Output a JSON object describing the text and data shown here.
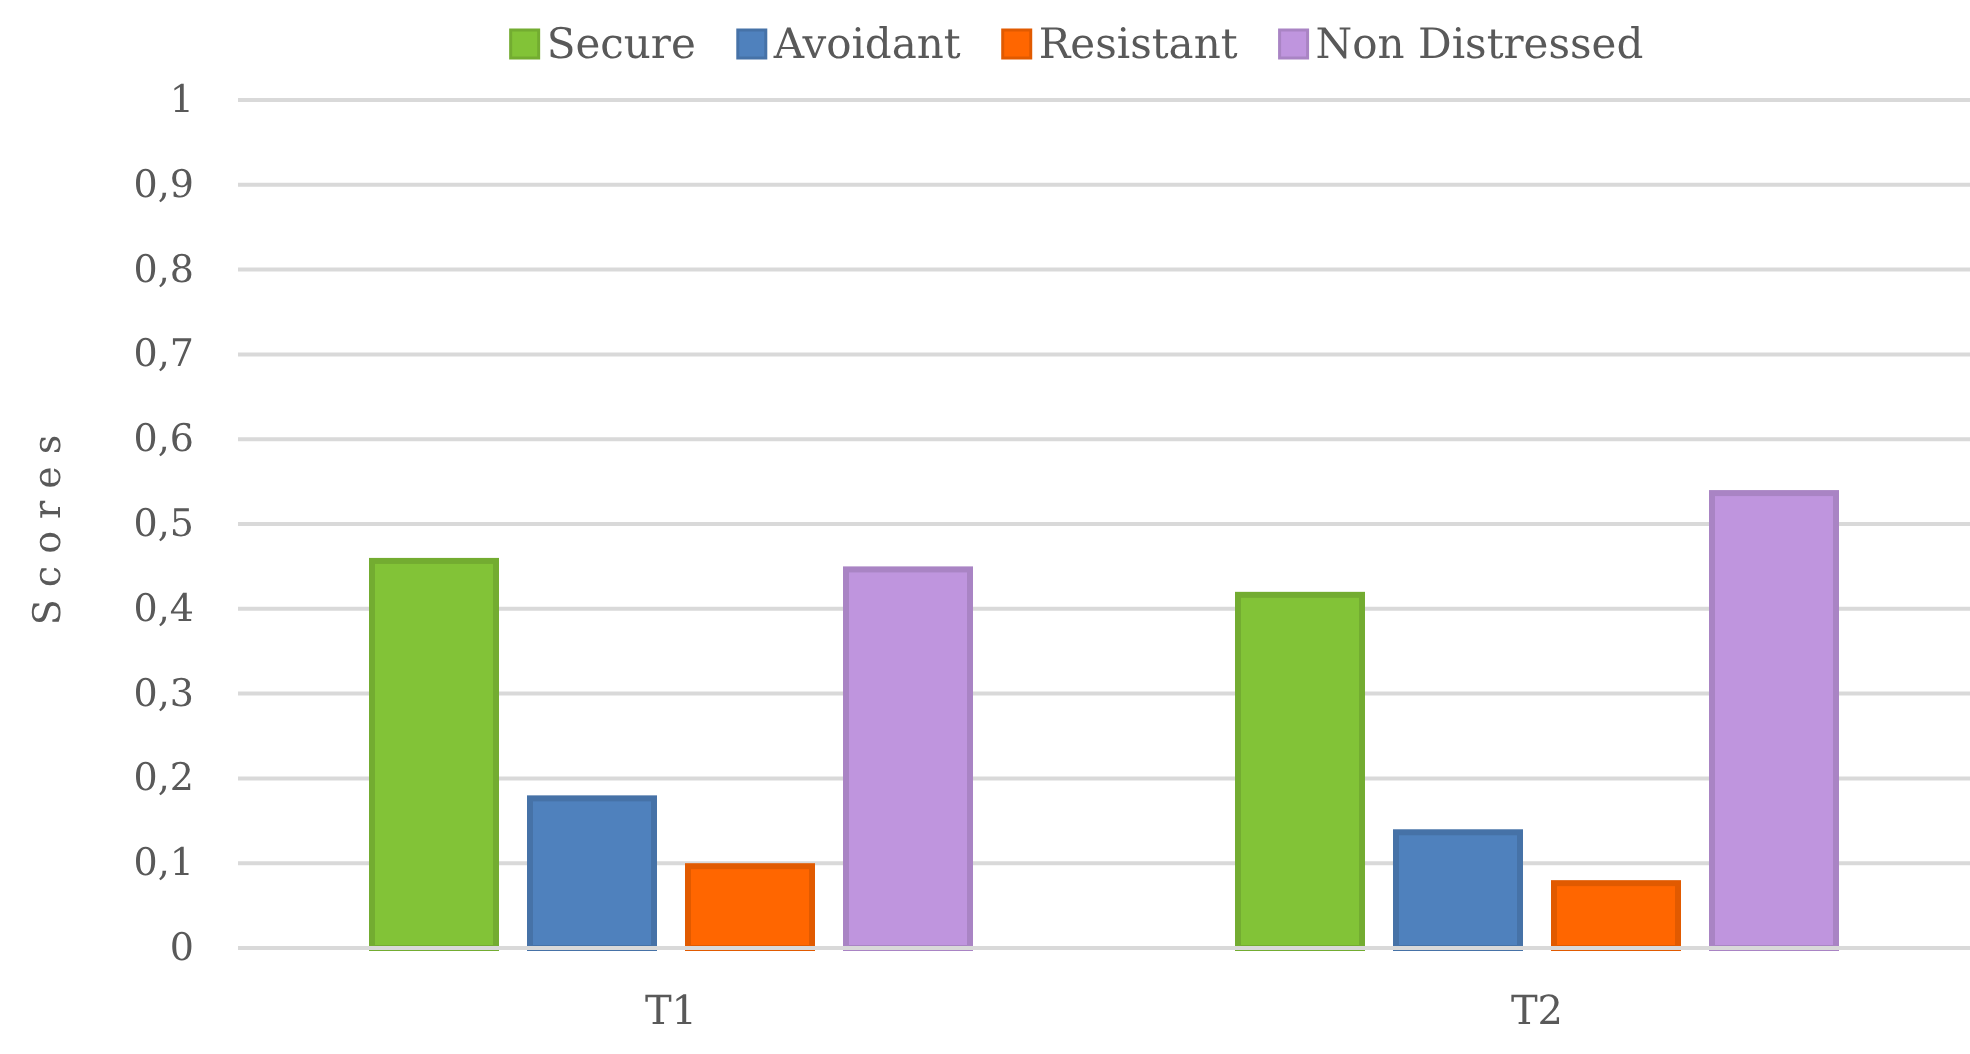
{
  "chart_data": {
    "type": "bar",
    "ylabel": "Scores",
    "categories": [
      "T1",
      "T2"
    ],
    "series": [
      {
        "name": "Secure",
        "color": "#82c337",
        "values": [
          0.46,
          0.42
        ]
      },
      {
        "name": "Avoidant",
        "color": "#4f81bd",
        "values": [
          0.18,
          0.14
        ]
      },
      {
        "name": "Resistant",
        "color": "#ff6600",
        "values": [
          0.1,
          0.08
        ]
      },
      {
        "name": "Non Distressed",
        "color": "#bf95de",
        "values": [
          0.45,
          0.54
        ]
      }
    ],
    "ylim": [
      0,
      1
    ],
    "yticks": [
      {
        "value": 0,
        "label": "0"
      },
      {
        "value": 0.1,
        "label": "0,1"
      },
      {
        "value": 0.2,
        "label": "0,2"
      },
      {
        "value": 0.3,
        "label": "0,3"
      },
      {
        "value": 0.4,
        "label": "0,4"
      },
      {
        "value": 0.5,
        "label": "0,5"
      },
      {
        "value": 0.6,
        "label": "0,6"
      },
      {
        "value": 0.7,
        "label": "0,7"
      },
      {
        "value": 0.8,
        "label": "0,8"
      },
      {
        "value": 0.9,
        "label": "0,9"
      },
      {
        "value": 1,
        "label": "1"
      }
    ],
    "grid": "y",
    "legend": "top"
  }
}
